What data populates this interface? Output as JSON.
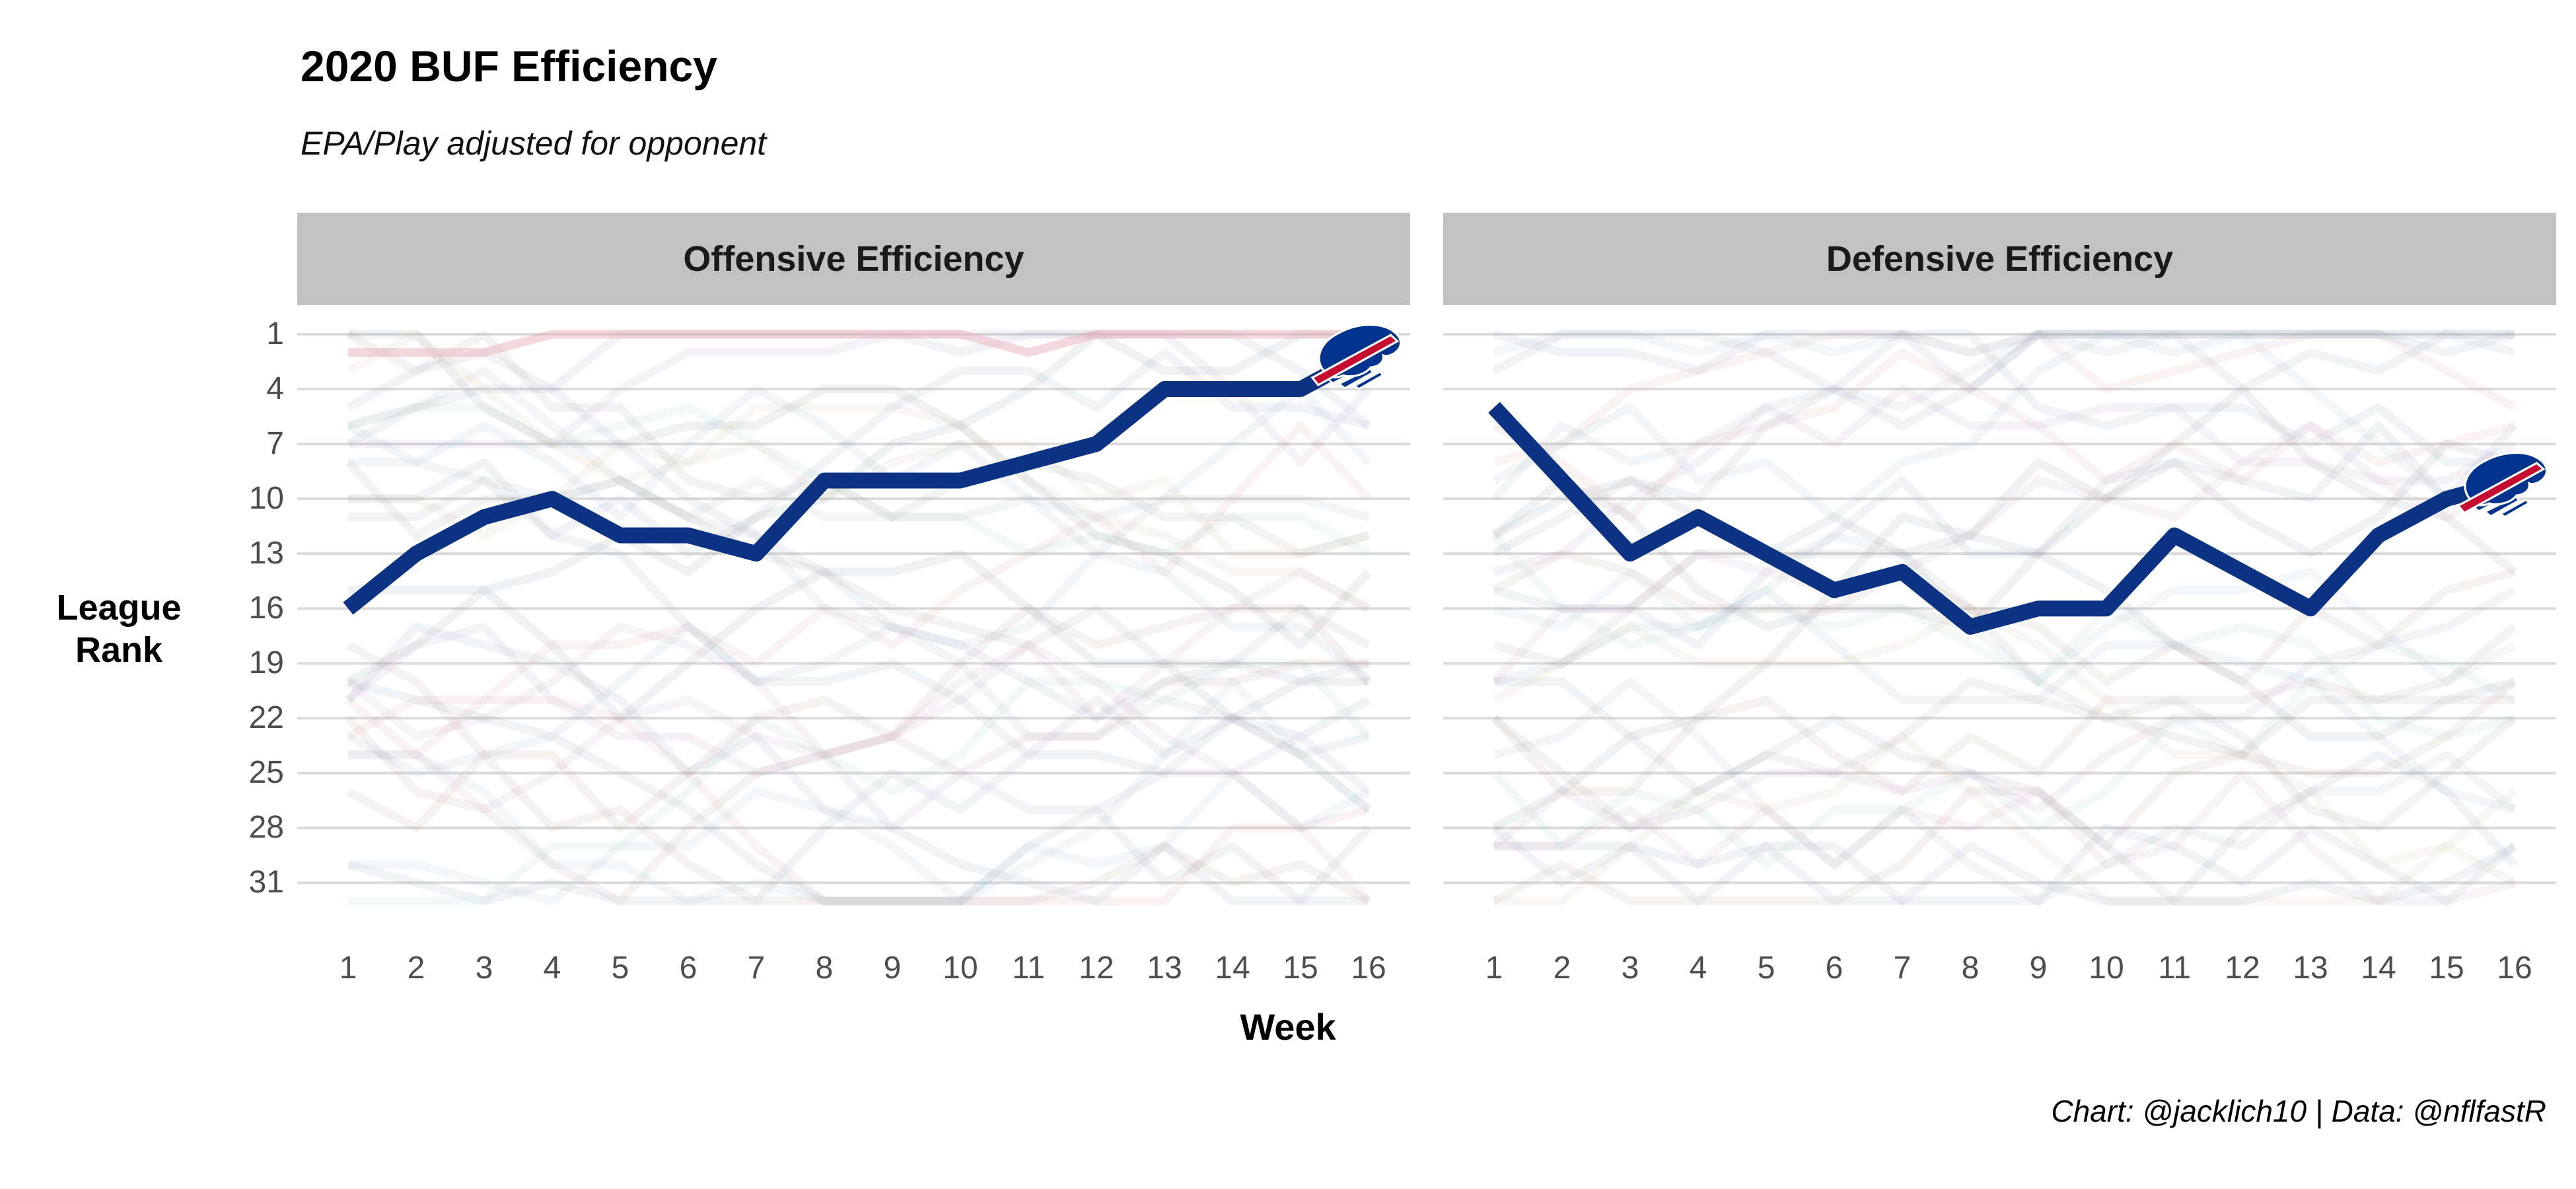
{
  "title": "2020 BUF Efficiency",
  "subtitle": "EPA/Play adjusted for opponent",
  "caption": "Chart: @jacklich10 | Data: @nflfastR",
  "axes": {
    "x_label": "Week",
    "y_label_line1": "League",
    "y_label_line2": "Rank",
    "x_ticks": [
      "1",
      "2",
      "3",
      "4",
      "5",
      "6",
      "7",
      "8",
      "9",
      "10",
      "11",
      "12",
      "13",
      "14",
      "15",
      "16"
    ],
    "y_ticks": [
      "1",
      "4",
      "7",
      "10",
      "13",
      "16",
      "19",
      "22",
      "25",
      "28",
      "31"
    ]
  },
  "chart_data": {
    "type": "line",
    "title": "2020 BUF Efficiency",
    "subtitle": "EPA/Play adjusted for opponent",
    "caption": "Chart: @jacklich10 | Data: @nflfastR",
    "xlabel": "Week",
    "ylabel": "League Rank",
    "x": [
      1,
      2,
      3,
      4,
      5,
      6,
      7,
      8,
      9,
      10,
      11,
      12,
      13,
      14,
      15,
      16
    ],
    "y_ticks": [
      1,
      4,
      7,
      10,
      13,
      16,
      19,
      22,
      25,
      28,
      31
    ],
    "ylim": [
      1,
      32
    ],
    "y_axis_reversed": true,
    "grid": "horizontal-only",
    "legend": "none",
    "highlight_team": "BUF",
    "highlight_color": "#0c3383",
    "panels": [
      {
        "label": "Offensive Efficiency",
        "series": [
          {
            "name": "BUF",
            "values": [
              16,
              13,
              11,
              10,
              12,
              12,
              13,
              9,
              9,
              9,
              8,
              7,
              4,
              4,
              4,
              2
            ]
          }
        ],
        "pinned_background": [
          {
            "color": "#e9aebc",
            "opacity": 0.5,
            "values": [
              2,
              2,
              2,
              1,
              1,
              1,
              1,
              1,
              1,
              1,
              2,
              1,
              1,
              1,
              1,
              1
            ]
          }
        ]
      },
      {
        "label": "Defensive Efficiency",
        "series": [
          {
            "name": "BUF",
            "values": [
              5,
              9,
              13,
              11,
              13,
              15,
              14,
              17,
              16,
              16,
              12,
              14,
              16,
              12,
              10,
              9
            ]
          }
        ],
        "pinned_background": []
      }
    ],
    "background_lines": {
      "count": 31,
      "opacity": 0.13,
      "stroke_width": 13,
      "seed": 7,
      "palette": [
        "#8d9199",
        "#9aa5b8",
        "#c59b9b",
        "#9bb9cf",
        "#cfa6a6",
        "#a6c4cf",
        "#98a3c0",
        "#aab0b6",
        "#b7a6c9",
        "#a6cfc0",
        "#cfc0a6",
        "#93a5b5",
        "#c9a6b7",
        "#a1a1a1"
      ]
    }
  },
  "logo": {
    "team": "BUF",
    "name": "buffalo-bills-logo",
    "colors": {
      "navy": "#00338D",
      "red": "#C60C30",
      "outline": "#ffffff"
    }
  },
  "style_colors": {
    "gridline": "#dbdbdb",
    "strip_background": "#c2c2c2",
    "axis_text": "#4d4d4d"
  }
}
